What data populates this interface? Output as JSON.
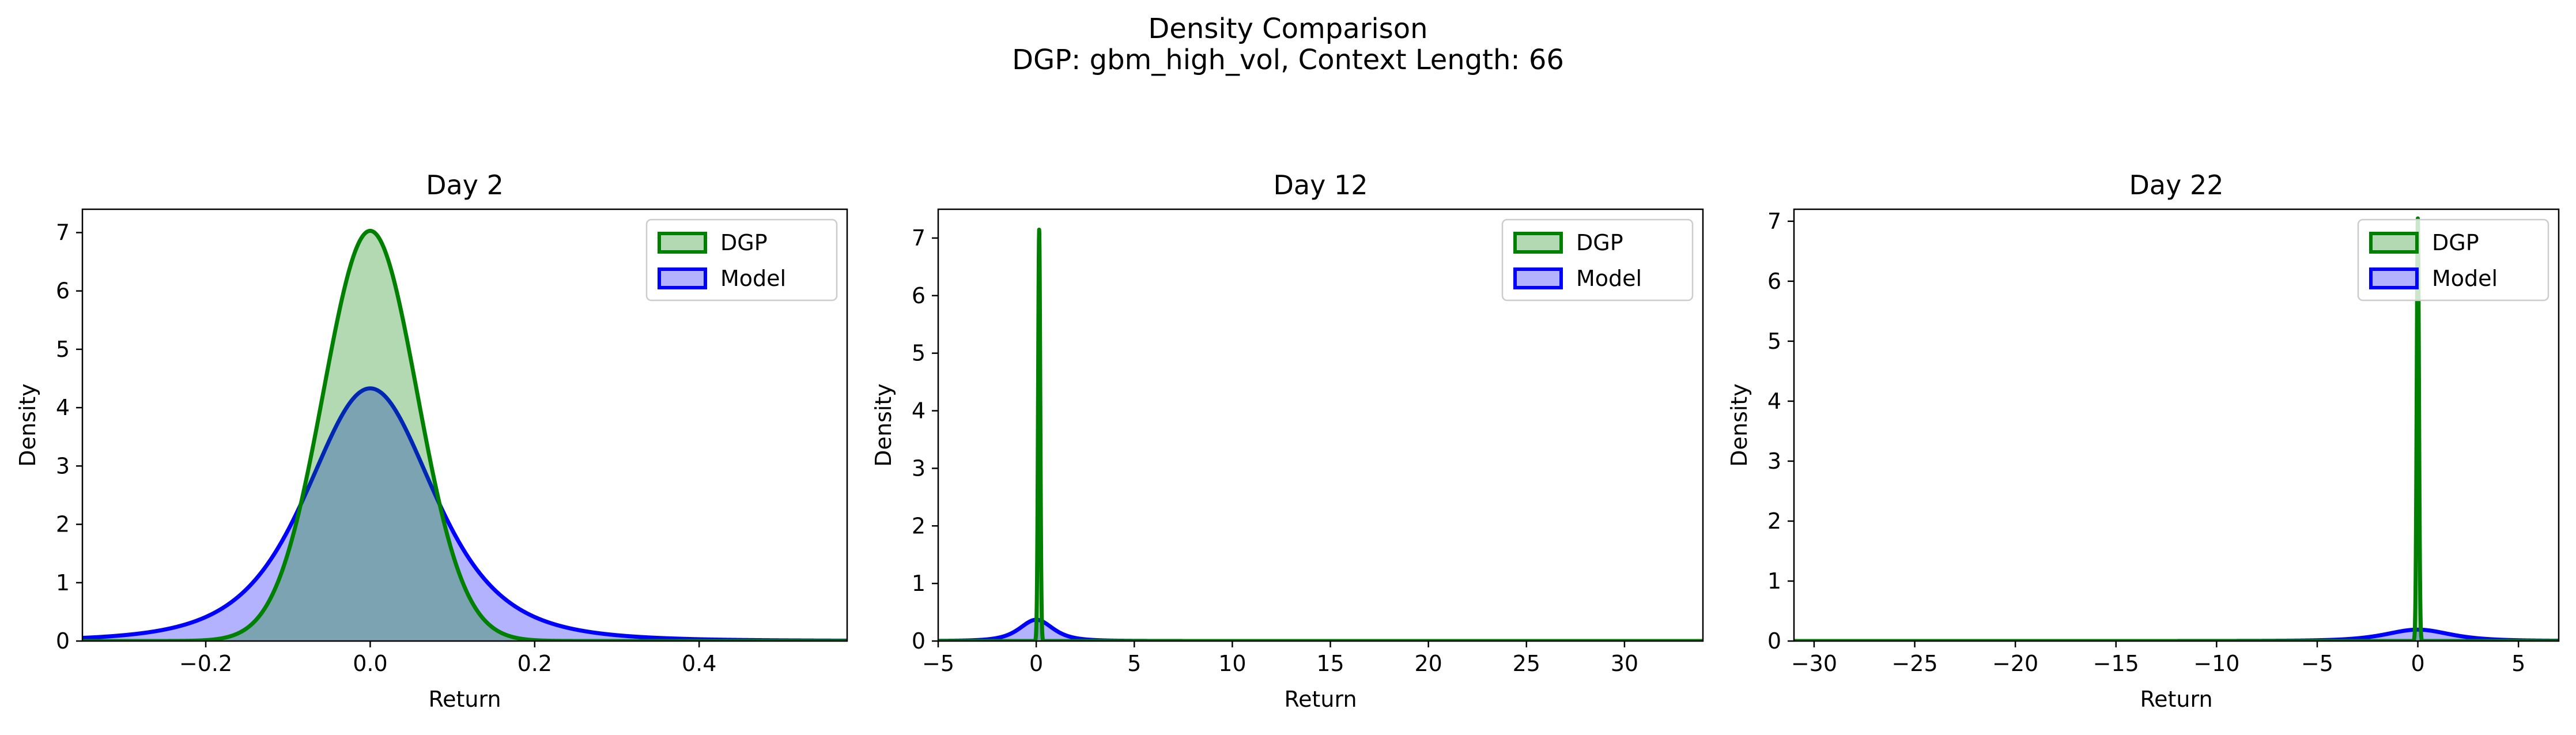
{
  "figure": {
    "title_line1": "Density Comparison",
    "title_line2": "DGP: gbm_high_vol, Context Length: 66"
  },
  "colors": {
    "dgp_line": "#008000",
    "dgp_fill": "#008000",
    "model_line": "#0000ff",
    "model_fill": "#0000ff"
  },
  "chart_data": [
    {
      "type": "area",
      "title": "Day 2",
      "xlabel": "Return",
      "ylabel": "Density",
      "xlim": [
        -0.35,
        0.58
      ],
      "ylim": [
        0,
        7.4
      ],
      "xticks": [
        -0.2,
        0.0,
        0.2,
        0.4
      ],
      "xtick_labels": [
        "−0.2",
        "0.0",
        "0.2",
        "0.4"
      ],
      "yticks": [
        0,
        1,
        2,
        3,
        4,
        5,
        6,
        7
      ],
      "ytick_labels": [
        "0",
        "1",
        "2",
        "3",
        "4",
        "5",
        "6",
        "7"
      ],
      "legend": "top-right",
      "series": [
        {
          "name": "DGP",
          "dist": "normal",
          "mean": 0.0,
          "peak": 7.03,
          "spread": 0.057
        },
        {
          "name": "Model",
          "dist": "student_t",
          "mean": 0.0,
          "peak": 4.33,
          "spread": 0.08,
          "df": 4
        }
      ]
    },
    {
      "type": "area",
      "title": "Day 12",
      "xlabel": "Return",
      "ylabel": "Density",
      "xlim": [
        -5,
        34
      ],
      "ylim": [
        0,
        7.5
      ],
      "xticks": [
        -5,
        0,
        5,
        10,
        15,
        20,
        25,
        30
      ],
      "xtick_labels": [
        "−5",
        "0",
        "5",
        "10",
        "15",
        "20",
        "25",
        "30"
      ],
      "yticks": [
        0,
        1,
        2,
        3,
        4,
        5,
        6,
        7
      ],
      "ytick_labels": [
        "0",
        "1",
        "2",
        "3",
        "4",
        "5",
        "6",
        "7"
      ],
      "legend": "top-right",
      "series": [
        {
          "name": "DGP",
          "dist": "normal",
          "mean": 0.15,
          "peak": 7.15,
          "spread": 0.056
        },
        {
          "name": "Model",
          "dist": "student_t",
          "mean": 0.0,
          "peak": 0.37,
          "spread": 0.9,
          "df": 3
        }
      ]
    },
    {
      "type": "area",
      "title": "Day 22",
      "xlabel": "Return",
      "ylabel": "Density",
      "xlim": [
        -31,
        7
      ],
      "ylim": [
        0,
        7.2
      ],
      "xticks": [
        -30,
        -25,
        -20,
        -15,
        -10,
        -5,
        0,
        5
      ],
      "xtick_labels": [
        "−30",
        "−25",
        "−20",
        "−15",
        "−10",
        "−5",
        "0",
        "5"
      ],
      "yticks": [
        0,
        1,
        2,
        3,
        4,
        5,
        6,
        7
      ],
      "ytick_labels": [
        "0",
        "1",
        "2",
        "3",
        "4",
        "5",
        "6",
        "7"
      ],
      "legend": "top-right",
      "series": [
        {
          "name": "DGP",
          "dist": "normal",
          "mean": 0.0,
          "peak": 7.05,
          "spread": 0.056
        },
        {
          "name": "Model",
          "dist": "student_t",
          "mean": 0.0,
          "peak": 0.19,
          "spread": 1.7,
          "df": 3
        }
      ]
    }
  ]
}
